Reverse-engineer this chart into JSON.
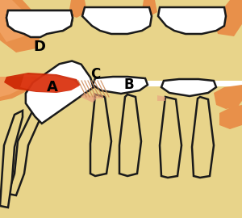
{
  "bg_color": "#f0dfa0",
  "tooth_fill": "#ffffff",
  "tooth_outline": "#1a1a1a",
  "bone_color": "#e8d48a",
  "orange_gum": "#e8904a",
  "orange_gum2": "#f0a060",
  "inflamed_dark": "#cc2200",
  "inflamed_light": "#e84422",
  "hatch_color": "#cc8855",
  "pink_gum": "#e8a080",
  "figsize": [
    3.0,
    2.7
  ],
  "dpi": 100,
  "label_A": "A",
  "label_B": "B",
  "label_C": "C",
  "label_D": "D"
}
